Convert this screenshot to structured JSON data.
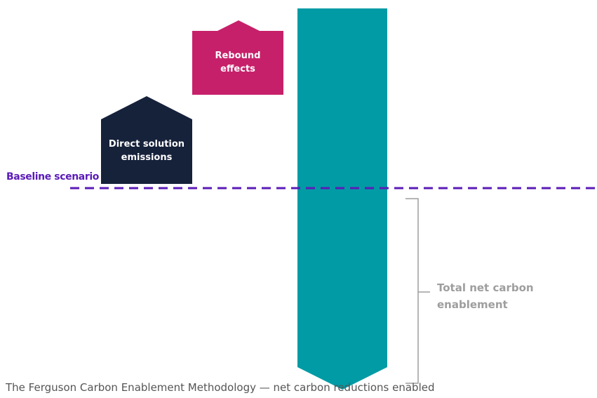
{
  "diagram": {
    "shapes": {
      "rebound": {
        "label_line1": "Rebound",
        "label_line2": "effects",
        "color": "#C7206A"
      },
      "direct": {
        "label_line1": "Direct solution",
        "label_line2": "emissions",
        "color": "#16213A"
      },
      "enablement_bar": {
        "color": "#009BA5"
      }
    },
    "baseline": {
      "label": "Baseline scenario",
      "color": "#5B1BB8"
    },
    "bracket": {
      "label_line1": "Total net carbon",
      "label_line2": "enablement",
      "color": "#9E9E9E"
    },
    "footer_text": "The Ferguson Carbon Enablement Methodology — net carbon reductions enabled"
  }
}
